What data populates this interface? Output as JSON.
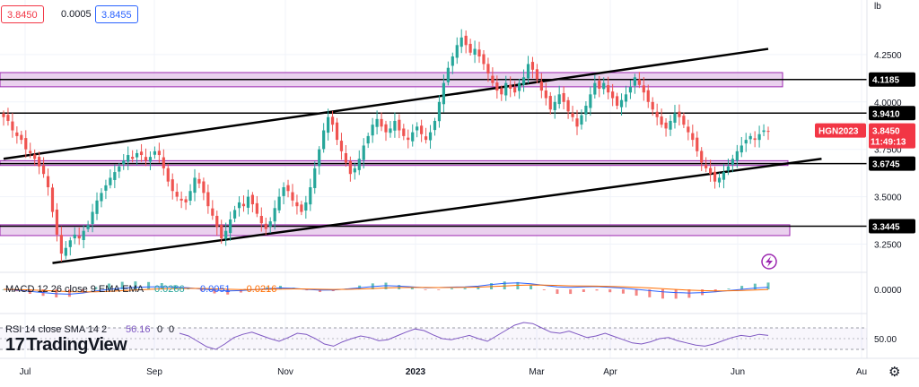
{
  "header": {
    "bid": "3.8450",
    "spread": "0.0005",
    "ask": "3.8455",
    "unit_label": "lb"
  },
  "brand": {
    "name": "TradingView",
    "logo_glyph": "17"
  },
  "colors": {
    "up": "#26a69a",
    "down": "#ef5350",
    "zone_fill": "#e1bee7",
    "zone_border": "#9c27b0",
    "trend": "#000000",
    "price_badge": "#f23645",
    "macd": "#2962ff",
    "signal": "#ff6d00",
    "rsi": "#7e57c2"
  },
  "chart_data": {
    "type": "candlestick",
    "symbol": "HGN2023",
    "last_price": "3.8450",
    "countdown": "11:49:13",
    "y_ticks": [
      "4.2500",
      "4.0000",
      "3.7500",
      "3.5000",
      "3.2500"
    ],
    "y_tick_values": [
      4.25,
      4.0,
      3.75,
      3.5,
      3.25
    ],
    "ylim": [
      3.12,
      4.5
    ],
    "x_ticks": [
      "Jul",
      "Sep",
      "Nov",
      "2023",
      "Mar",
      "Apr",
      "Jun",
      "Au"
    ],
    "levels": [
      {
        "label": "4.1185",
        "value": 4.1185
      },
      {
        "label": "3.9410",
        "value": 3.941
      },
      {
        "label": "3.6745",
        "value": 3.6745
      },
      {
        "label": "3.3445",
        "value": 3.3445
      }
    ],
    "zones": [
      {
        "low": 4.08,
        "high": 4.155
      },
      {
        "low": 3.665,
        "high": 3.69
      },
      {
        "low": 3.295,
        "high": 3.352
      }
    ],
    "trendlines": [
      {
        "from": {
          "i": 0,
          "y": 3.7
        },
        "to": {
          "i": 172,
          "y": 4.28
        }
      },
      {
        "from": {
          "i": 11,
          "y": 3.15
        },
        "to": {
          "i": 184,
          "y": 3.7
        }
      }
    ],
    "close": [
      3.92,
      3.9,
      3.85,
      3.82,
      3.8,
      3.75,
      3.73,
      3.7,
      3.66,
      3.62,
      3.55,
      3.42,
      3.3,
      3.2,
      3.23,
      3.27,
      3.3,
      3.28,
      3.32,
      3.35,
      3.42,
      3.48,
      3.52,
      3.56,
      3.6,
      3.63,
      3.66,
      3.69,
      3.72,
      3.7,
      3.73,
      3.72,
      3.69,
      3.71,
      3.74,
      3.72,
      3.65,
      3.58,
      3.53,
      3.5,
      3.48,
      3.47,
      3.53,
      3.6,
      3.57,
      3.52,
      3.45,
      3.4,
      3.34,
      3.28,
      3.32,
      3.38,
      3.43,
      3.47,
      3.45,
      3.5,
      3.46,
      3.41,
      3.36,
      3.33,
      3.37,
      3.44,
      3.5,
      3.55,
      3.53,
      3.48,
      3.45,
      3.42,
      3.47,
      3.55,
      3.65,
      3.75,
      3.85,
      3.92,
      3.88,
      3.8,
      3.74,
      3.68,
      3.62,
      3.65,
      3.7,
      3.77,
      3.82,
      3.88,
      3.91,
      3.87,
      3.84,
      3.86,
      3.9,
      3.85,
      3.82,
      3.8,
      3.84,
      3.87,
      3.83,
      3.8,
      3.84,
      3.9,
      4.0,
      4.1,
      4.18,
      4.24,
      4.3,
      4.34,
      4.3,
      4.26,
      4.28,
      4.24,
      4.2,
      4.15,
      4.1,
      4.06,
      4.04,
      4.1,
      4.07,
      4.05,
      4.1,
      4.13,
      4.2,
      4.17,
      4.12,
      4.06,
      4.02,
      3.96,
      4.0,
      4.04,
      4.0,
      3.95,
      3.92,
      3.87,
      3.93,
      3.98,
      4.04,
      4.1,
      4.07,
      4.1,
      4.05,
      4.02,
      3.98,
      4.01,
      4.04,
      4.08,
      4.13,
      4.09,
      4.05,
      4.0,
      3.96,
      3.92,
      3.88,
      3.86,
      3.9,
      3.94,
      3.92,
      3.88,
      3.84,
      3.8,
      3.74,
      3.68,
      3.65,
      3.62,
      3.58,
      3.6,
      3.63,
      3.66,
      3.7,
      3.74,
      3.77,
      3.8,
      3.82,
      3.8,
      3.83,
      3.85,
      3.845
    ],
    "macd": {
      "label": "MACD 12 26 close 9 EMA EMA",
      "values": [
        "0.0266",
        "0.0051",
        "-0.0216"
      ],
      "axis_label": "0.0000",
      "series": [
        0.0,
        -0.01,
        -0.025,
        -0.04,
        -0.055,
        -0.06,
        -0.045,
        -0.02,
        0.0,
        0.015,
        0.025,
        0.03,
        0.032,
        0.028,
        0.02,
        0.005,
        -0.01,
        -0.02,
        -0.015,
        -0.005,
        0.008,
        0.018,
        0.012,
        0.0,
        -0.01,
        -0.008,
        0.004,
        0.02,
        0.035,
        0.045,
        0.04,
        0.03,
        0.02,
        0.022,
        0.028,
        0.03,
        0.04,
        0.06,
        0.075,
        0.08,
        0.07,
        0.05,
        0.03,
        0.025,
        0.03,
        0.035,
        0.025,
        0.015,
        0.0,
        -0.015,
        -0.03,
        -0.04,
        -0.045,
        -0.04,
        -0.03,
        -0.015,
        0.0,
        0.015,
        0.0266
      ]
    },
    "rsi": {
      "label": "RSI 14 close SMA 14 2",
      "values": [
        "56.16",
        "0",
        "0"
      ],
      "axis_label": "50.00",
      "series": [
        60,
        55,
        45,
        35,
        30,
        40,
        52,
        58,
        62,
        56,
        50,
        45,
        52,
        60,
        58,
        50,
        40,
        36,
        44,
        50,
        55,
        52,
        46,
        48,
        55,
        62,
        68,
        65,
        57,
        50,
        48,
        52,
        56,
        50,
        45,
        55,
        65,
        75,
        80,
        78,
        70,
        62,
        60,
        64,
        58,
        52,
        55,
        60,
        54,
        48,
        42,
        40,
        44,
        50,
        52,
        46,
        42,
        38,
        36,
        40,
        46,
        52,
        56,
        54,
        58,
        56
      ]
    }
  }
}
